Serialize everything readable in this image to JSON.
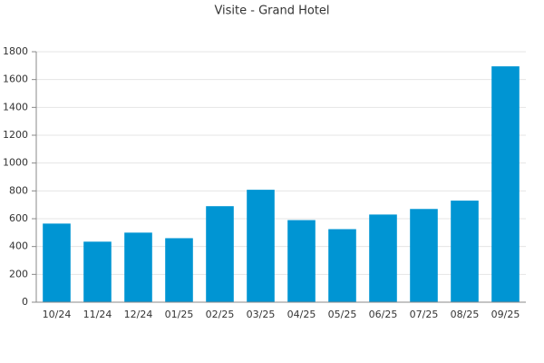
{
  "chart_data": {
    "type": "bar",
    "title": "Visite - Grand Hotel",
    "categories": [
      "10/24",
      "11/24",
      "12/24",
      "01/25",
      "02/25",
      "03/25",
      "04/25",
      "05/25",
      "06/25",
      "07/25",
      "08/25",
      "09/25"
    ],
    "values": [
      565,
      435,
      500,
      460,
      690,
      808,
      590,
      525,
      630,
      670,
      730,
      1695
    ],
    "color": "#0095d3",
    "ylim": [
      0,
      1800
    ],
    "yticks": [
      0,
      200,
      400,
      600,
      800,
      1000,
      1200,
      1400,
      1600,
      1800
    ],
    "grid": true
  }
}
